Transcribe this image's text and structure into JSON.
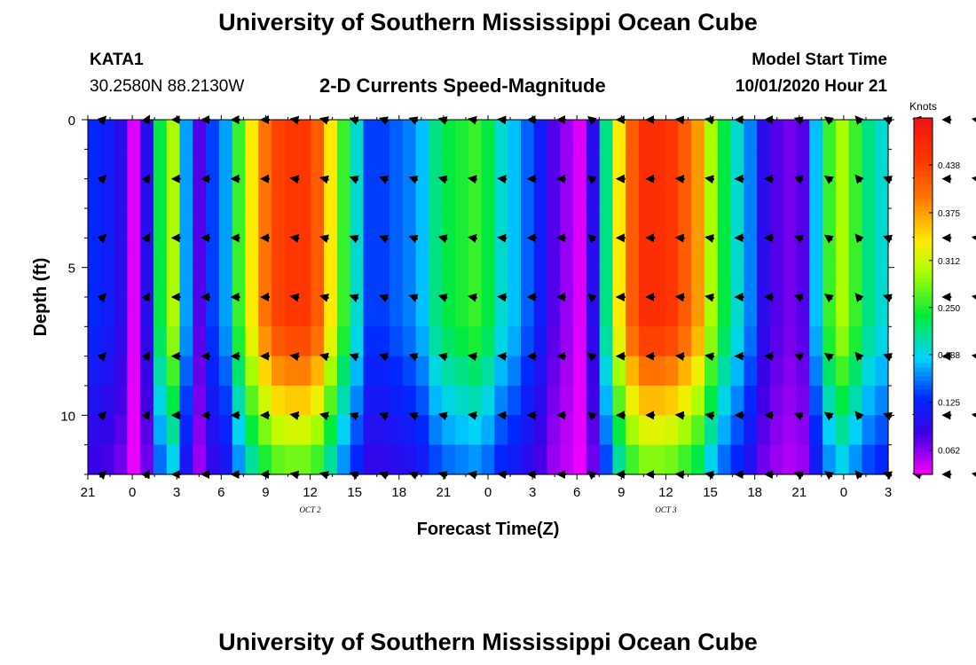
{
  "page": {
    "title_top": "University of Southern Mississippi Ocean Cube",
    "title_bottom": "University of Southern Mississippi Ocean Cube"
  },
  "header": {
    "station_id": "KATA1",
    "station_coords": "30.2580N 88.2130W",
    "model_start_label": "Model Start Time",
    "model_start_value": "10/01/2020 Hour 21"
  },
  "chart_data": {
    "type": "heatmap",
    "title": "2-D Currents Speed-Magnitude",
    "xlabel": "Forecast Time(Z)",
    "ylabel": "Depth (ft)",
    "x_tick_labels": [
      "21",
      "0",
      "3",
      "6",
      "9",
      "12",
      "15",
      "18",
      "21",
      "0",
      "3",
      "6",
      "9",
      "12",
      "15",
      "18",
      "21",
      "0",
      "3"
    ],
    "x_date_labels": [
      {
        "label": "OCT 2",
        "at_tick": 5
      },
      {
        "label": "OCT 3",
        "at_tick": 13
      }
    ],
    "y_ticks": [
      0,
      5,
      10
    ],
    "ylim": [
      0,
      12
    ],
    "y_inverted": true,
    "colorbar": {
      "unit": "Knots",
      "min": 0.03,
      "max": 0.5,
      "tick_labels": [
        "0.062",
        "0.125",
        "0.188",
        "0.250",
        "0.312",
        "0.375",
        "0.438"
      ],
      "tick_values": [
        0.062,
        0.125,
        0.188,
        0.25,
        0.312,
        0.375,
        0.438
      ]
    },
    "depth_levels_ft": [
      0,
      1,
      2,
      3,
      4,
      5,
      6,
      7,
      8,
      9,
      10,
      11,
      12
    ],
    "surface_speed_by_hour": [
      0.13,
      0.12,
      0.1,
      0.04,
      0.1,
      0.24,
      0.3,
      0.17,
      0.08,
      0.14,
      0.17,
      0.26,
      0.34,
      0.4,
      0.44,
      0.45,
      0.45,
      0.42,
      0.34,
      0.26,
      0.2,
      0.14,
      0.14,
      0.15,
      0.16,
      0.18,
      0.22,
      0.24,
      0.25,
      0.26,
      0.24,
      0.2,
      0.18,
      0.15,
      0.12,
      0.08,
      0.06,
      0.04,
      0.1,
      0.22,
      0.34,
      0.42,
      0.46,
      0.46,
      0.45,
      0.42,
      0.38,
      0.3,
      0.24,
      0.2,
      0.16,
      0.1,
      0.08,
      0.07,
      0.08,
      0.18,
      0.26,
      0.3,
      0.26,
      0.22,
      0.2,
      0.18
    ],
    "arrow_rows_depth_ft": [
      0,
      2,
      4,
      6,
      8,
      10,
      12
    ],
    "arrow_columns_hour": [
      1,
      4,
      6,
      8,
      10,
      12,
      14,
      16,
      18,
      20,
      22,
      24,
      26,
      28,
      30,
      32,
      34,
      36,
      38,
      40,
      42,
      44,
      46,
      48,
      50,
      52,
      54,
      56,
      58,
      60
    ],
    "arrow_angles_deg_by_column": [
      -45,
      -60,
      180,
      180,
      180,
      180,
      190,
      195,
      200,
      200,
      200,
      195,
      190,
      185,
      180,
      180,
      220,
      180,
      180,
      185,
      190,
      180,
      180,
      200,
      215,
      230,
      200,
      190,
      180,
      190
    ]
  }
}
